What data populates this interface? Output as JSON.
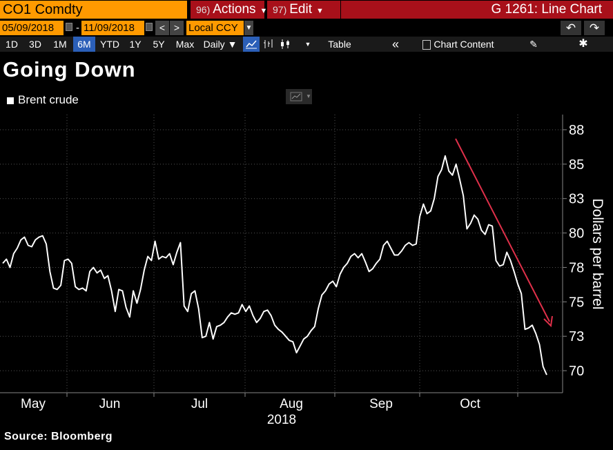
{
  "header": {
    "ticker": "CO1 Comdty",
    "actions": {
      "num": "96)",
      "label": "Actions"
    },
    "edit": {
      "num": "97)",
      "label": "Edit"
    },
    "window_title": "G 1261: Line Chart"
  },
  "range_bar": {
    "start_date": "05/09/2018",
    "end_date": "11/09/2018",
    "prev": "<",
    "next": ">",
    "currency": "Local CCY",
    "undo": "↶",
    "redo": "↷"
  },
  "toolbar": {
    "periods": [
      "1D",
      "3D",
      "1M",
      "6M",
      "YTD",
      "1Y",
      "5Y",
      "Max"
    ],
    "selected_period": "6M",
    "frequency": "Daily ▼",
    "table": "Table",
    "collapse": "«",
    "chart_content": "Chart Content"
  },
  "colors": {
    "accent_orange": "#ff9a00",
    "header_red": "#a8101a",
    "selected_blue": "#2b5fb8",
    "arrow": "#e0304a"
  },
  "chart_data": {
    "type": "line",
    "title": "Going Down",
    "series": [
      {
        "name": "Brent crude",
        "values": [
          77.8,
          78.1,
          77.5,
          78.5,
          78.9,
          79.5,
          79.7,
          79.1,
          79.0,
          79.5,
          79.7,
          79.8,
          79.2,
          77.2,
          76.0,
          75.9,
          76.2,
          78.0,
          78.1,
          77.8,
          76.1,
          75.9,
          76.0,
          75.8,
          77.2,
          77.5,
          77.1,
          77.3,
          76.7,
          76.9,
          75.8,
          74.3,
          75.9,
          75.8,
          74.6,
          73.9,
          75.8,
          74.9,
          75.9,
          77.3,
          78.3,
          78.0,
          79.4,
          78.1,
          78.3,
          78.2,
          78.5,
          77.7,
          78.6,
          79.3,
          74.7,
          74.3,
          75.6,
          75.8,
          74.5,
          72.4,
          72.5,
          73.5,
          72.3,
          73.2,
          73.3,
          73.5,
          73.9,
          74.2,
          74.1,
          74.2,
          74.8,
          74.3,
          74.7,
          74.0,
          73.5,
          73.8,
          74.3,
          74.4,
          74.0,
          73.3,
          73.0,
          72.8,
          72.5,
          72.2,
          72.1,
          71.3,
          71.8,
          72.3,
          72.5,
          72.9,
          73.2,
          74.5,
          75.5,
          75.8,
          76.3,
          76.5,
          76.1,
          77.0,
          77.5,
          77.8,
          78.3,
          78.5,
          78.2,
          78.5,
          77.9,
          77.2,
          77.4,
          77.8,
          78.1,
          79.1,
          79.4,
          78.9,
          78.4,
          78.4,
          78.7,
          79.1,
          79.3,
          79.1,
          79.2,
          81.2,
          82.1,
          81.4,
          81.6,
          82.5,
          84.1,
          84.6,
          85.6,
          84.5,
          84.2,
          85.0,
          83.9,
          82.7,
          80.3,
          80.7,
          81.3,
          81.0,
          80.2,
          79.9,
          80.6,
          80.5,
          78.0,
          77.6,
          77.7,
          78.6,
          78.0,
          77.2,
          76.3,
          75.6,
          73.0,
          73.1,
          73.3,
          72.7,
          71.9,
          70.3,
          69.7
        ]
      }
    ],
    "xlabel": "2018",
    "ylabel": "Dollars per barrel",
    "x_tick_labels": [
      "May",
      "Jun",
      "Jul",
      "Aug",
      "Sep",
      "Oct"
    ],
    "y_tick_labels": [
      "70",
      "73",
      "75",
      "78",
      "80",
      "83",
      "85",
      "88"
    ],
    "ylim": [
      68.4,
      88.6
    ],
    "grid": true,
    "legend_position": "top-left",
    "annotation": "downward trend arrow",
    "source": "Source: Bloomberg"
  }
}
